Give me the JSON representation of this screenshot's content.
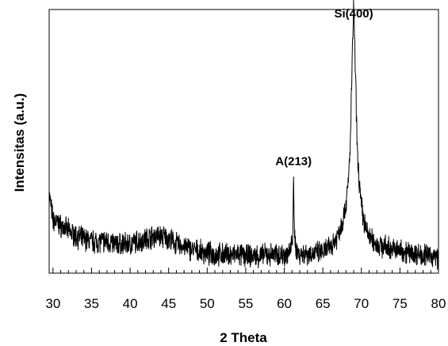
{
  "chart_data": {
    "type": "line",
    "title": "",
    "xlabel": "2 Theta",
    "ylabel": "Intensitas (a.u.)",
    "xlim": [
      29.5,
      80
    ],
    "ylim": [
      0,
      100
    ],
    "x_ticks": [
      30,
      35,
      40,
      45,
      50,
      55,
      60,
      65,
      70,
      75,
      80
    ],
    "x_tick_labels": [
      "30",
      "35",
      "40",
      "45",
      "50",
      "55",
      "60",
      "65",
      "70",
      "75",
      "80"
    ],
    "y_ticks_visible": false,
    "grid": false,
    "legend": "none",
    "line_color": "#000000",
    "annotations": [
      {
        "text": "Si(400)",
        "x": 69.0,
        "y": 97
      },
      {
        "text": "A(213)",
        "x": 61.2,
        "y": 41
      }
    ],
    "series": [
      {
        "x": [
          29.5,
          30,
          31,
          32,
          33,
          34,
          35,
          36,
          37,
          38,
          39,
          40,
          41,
          42,
          43,
          44,
          45,
          46,
          47,
          48,
          49,
          50,
          51,
          52,
          53,
          54,
          55,
          56,
          57,
          58,
          59,
          60,
          60.8,
          61.1,
          61.2,
          61.3,
          61.6,
          62,
          63,
          64,
          65,
          66,
          66.5,
          67,
          67.5,
          68,
          68.3,
          68.6,
          68.8,
          69.0,
          69.2,
          69.5,
          69.9,
          70.3,
          70.8,
          71.5,
          72,
          73,
          74,
          75,
          76,
          77,
          78,
          79,
          80
        ],
        "y": [
          30,
          20,
          18,
          16,
          14,
          13,
          12,
          12,
          12,
          11,
          11,
          11,
          12,
          13,
          14,
          14,
          13,
          11,
          10,
          9,
          8,
          7.5,
          7,
          7,
          7,
          7,
          6.5,
          6.5,
          6.5,
          7,
          7,
          7,
          8,
          15,
          34,
          16,
          8,
          7.5,
          7.5,
          7.5,
          8,
          10,
          12,
          15,
          19,
          26,
          34,
          52,
          80,
          103,
          78,
          44,
          28,
          20,
          15,
          12,
          11,
          10,
          9,
          8.5,
          8,
          7.5,
          7,
          6.5,
          6
        ]
      }
    ]
  }
}
